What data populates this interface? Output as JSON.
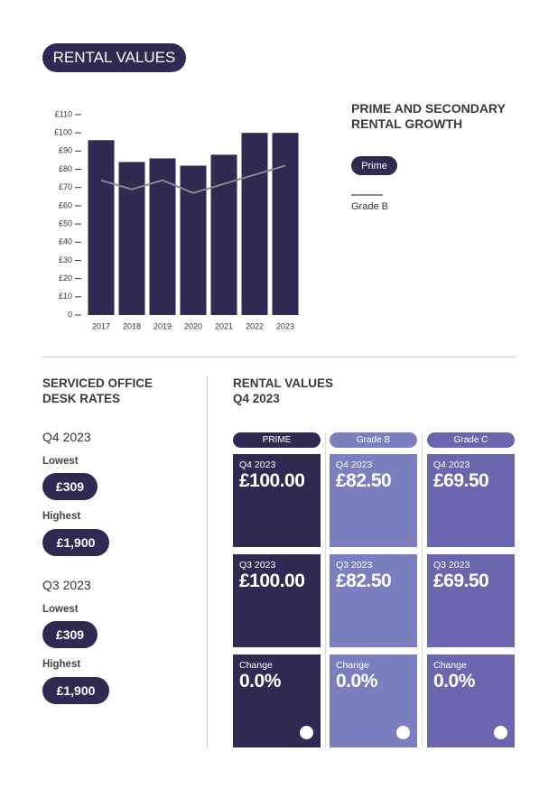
{
  "header": {
    "title": "RENTAL VALUES"
  },
  "chart_data": {
    "type": "bar",
    "title": "PRIME AND SECONDARY RENTAL GROWTH",
    "categories": [
      "2017",
      "2018",
      "2019",
      "2020",
      "2021",
      "2022",
      "2023"
    ],
    "series": [
      {
        "name": "Prime",
        "type": "bar",
        "color": "#2e2a52",
        "values": [
          96,
          84,
          86,
          82,
          88,
          100,
          100
        ]
      },
      {
        "name": "Grade B",
        "type": "line",
        "color": "#8a8a8a",
        "values": [
          74,
          69,
          74,
          67,
          72,
          77,
          82
        ]
      }
    ],
    "ylim": [
      0,
      110
    ],
    "yticks": [
      0,
      {
        "value": 10,
        "label": "£10"
      },
      {
        "value": 20,
        "label": "£20"
      },
      {
        "value": 30,
        "label": "£30"
      },
      {
        "value": 40,
        "label": "£40"
      },
      {
        "value": 50,
        "label": "£50"
      },
      {
        "value": 60,
        "label": "£60"
      },
      {
        "value": 70,
        "label": "£70"
      },
      {
        "value": 80,
        "label": "£80"
      },
      {
        "value": 90,
        "label": "£90"
      },
      {
        "value": 100,
        "label": "£100"
      },
      {
        "value": 110,
        "label": "£110"
      }
    ]
  },
  "desk_rates": {
    "title": "SERVICED OFFICE DESK RATES",
    "periods": [
      {
        "period": "Q4 2023",
        "lowest_label": "Lowest",
        "lowest": "£309",
        "highest_label": "Highest",
        "highest": "£1,900"
      },
      {
        "period": "Q3 2023",
        "lowest_label": "Lowest",
        "lowest": "£309",
        "highest_label": "Highest",
        "highest": "£1,900"
      }
    ]
  },
  "rental_table": {
    "title": "RENTAL VALUES Q4 2023",
    "columns": [
      "PRIME",
      "Grade B",
      "Grade C"
    ],
    "rows": [
      [
        {
          "label": "Q4 2023",
          "value": "£100.00"
        },
        {
          "label": "Q4 2023",
          "value": "£82.50"
        },
        {
          "label": "Q4 2023",
          "value": "£69.50"
        }
      ],
      [
        {
          "label": "Q3 2023",
          "value": "£100.00"
        },
        {
          "label": "Q3 2023",
          "value": "£82.50"
        },
        {
          "label": "Q3 2023",
          "value": "£69.50"
        }
      ],
      [
        {
          "label": "Change",
          "value": "0.0%"
        },
        {
          "label": "Change",
          "value": "0.0%"
        },
        {
          "label": "Change",
          "value": "0.0%"
        }
      ]
    ]
  }
}
